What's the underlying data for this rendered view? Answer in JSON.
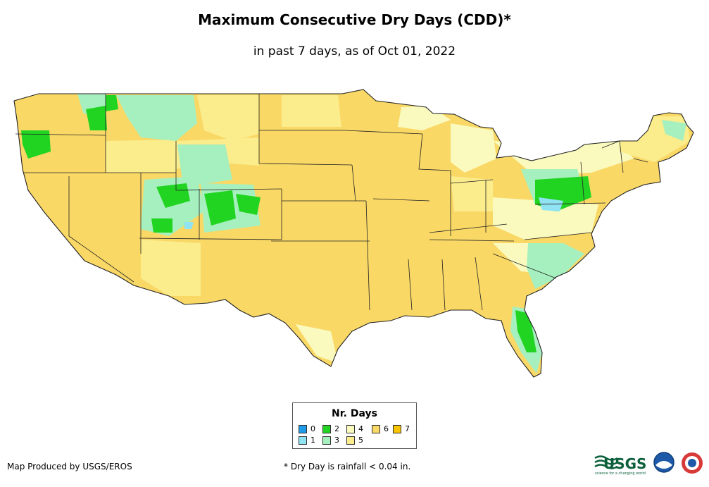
{
  "title": "Maximum Consecutive Dry Days (CDD)*",
  "subtitle": "in past 7 days, as of Oct 01, 2022",
  "legend": {
    "title": "Nr. Days",
    "items": [
      {
        "label": "0",
        "color": "#1e9be8"
      },
      {
        "label": "1",
        "color": "#8fe3f2"
      },
      {
        "label": "2",
        "color": "#22d422"
      },
      {
        "label": "3",
        "color": "#a6f0bf"
      },
      {
        "label": "4",
        "color": "#fafabe"
      },
      {
        "label": "5",
        "color": "#fbec8c"
      },
      {
        "label": "6",
        "color": "#f9d866"
      },
      {
        "label": "7",
        "color": "#f8c400"
      }
    ]
  },
  "credit": "Map Produced by USGS/EROS",
  "footnote": "* Dry Day is rainfall < 0.04 in.",
  "logos": {
    "usgs_text": "USGS",
    "usgs_tagline": "science for a changing world",
    "icons": [
      "usgs-logo-icon",
      "noaa-logo-icon",
      "nws-logo-icon"
    ]
  },
  "colors": {
    "base": "#f9d866",
    "light": "#fbec8c",
    "pale": "#fafabe",
    "mint": "#a6f0bf",
    "green": "#22d422",
    "cyan": "#8fe3f2",
    "border": "#222222"
  }
}
